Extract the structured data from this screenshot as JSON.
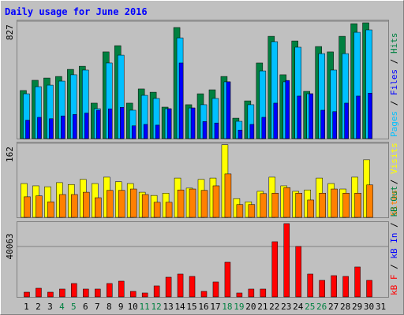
{
  "chart_data": [
    {
      "type": "bar",
      "title": "Daily usage for June 2016",
      "ylim": [
        0,
        827
      ],
      "yticks": [
        827
      ],
      "legend_separator": " / ",
      "series": [
        {
          "name": "Pages",
          "color": "#00c0ff",
          "values": [
            316,
            366,
            377,
            405,
            450,
            483,
            211,
            533,
            588,
            200,
            305,
            283,
            211,
            710,
            216,
            239,
            283,
            400,
            122,
            239,
            477,
            683,
            400,
            644,
            316,
            599,
            483,
            599,
            749,
            766,
            null
          ]
        },
        {
          "name": "Files",
          "color": "#0000ff",
          "values": [
            130,
            150,
            140,
            160,
            170,
            180,
            200,
            210,
            220,
            90,
            100,
            95,
            210,
            533,
            216,
            120,
            110,
            400,
            60,
            100,
            150,
            250,
            410,
            300,
            316,
            200,
            190,
            250,
            300,
            320,
            null
          ]
        },
        {
          "name": "Hits",
          "color": "#008040",
          "values": [
            339,
            411,
            427,
            438,
            488,
            510,
            250,
            611,
            655,
            250,
            350,
            327,
            222,
            783,
            239,
            316,
            344,
            438,
            144,
            266,
            533,
            721,
            450,
            688,
            333,
            649,
            611,
            721,
            810,
            816,
            null
          ]
        }
      ]
    },
    {
      "type": "bar",
      "ylim": [
        0,
        162
      ],
      "yticks": [
        162
      ],
      "legend_separator": " / ",
      "series": [
        {
          "name": "Sites",
          "color": "#ff8000",
          "values": [
            45,
            47,
            34,
            50,
            50,
            55,
            43,
            59,
            59,
            62,
            50,
            33,
            33,
            60,
            62,
            59,
            69,
            95,
            28,
            28,
            52,
            53,
            65,
            53,
            38,
            53,
            62,
            53,
            53,
            71,
            null
          ]
        },
        {
          "name": "Visits",
          "color": "#ffff00",
          "values": [
            74,
            69,
            67,
            76,
            72,
            83,
            74,
            88,
            78,
            74,
            55,
            48,
            53,
            86,
            64,
            83,
            86,
            159,
            41,
            34,
            57,
            88,
            69,
            57,
            60,
            86,
            74,
            62,
            88,
            126,
            null
          ]
        }
      ]
    },
    {
      "type": "bar",
      "ylim": [
        0,
        58800
      ],
      "yticks": [
        40063
      ],
      "legend_separator": " / ",
      "categories": [
        "1",
        "2",
        "3",
        "4",
        "5",
        "6",
        "7",
        "8",
        "9",
        "10",
        "11",
        "12",
        "13",
        "14",
        "15",
        "16",
        "17",
        "18",
        "19",
        "20",
        "21",
        "22",
        "23",
        "24",
        "25",
        "26",
        "27",
        "28",
        "29",
        "30",
        "31"
      ],
      "category_colors": [
        "#000000",
        "#000000",
        "#000000",
        "#008040",
        "#008040",
        "#000000",
        "#000000",
        "#000000",
        "#000000",
        "#000000",
        "#008040",
        "#008040",
        "#000000",
        "#000000",
        "#000000",
        "#000000",
        "#000000",
        "#008040",
        "#008040",
        "#000000",
        "#000000",
        "#000000",
        "#000000",
        "#000000",
        "#008040",
        "#008040",
        "#000000",
        "#000000",
        "#000000",
        "#000000",
        "#000000"
      ],
      "series": [
        {
          "name": "kB F",
          "color": "#ff0000",
          "values": [
            3756,
            6886,
            3756,
            6260,
            10642,
            6260,
            6260,
            10642,
            12520,
            4382,
            3130,
            8764,
            15650,
            18154,
            16276,
            4382,
            11894,
            27544,
            3130,
            6260,
            6260,
            43820,
            58218,
            40064,
            18154,
            13146,
            16902,
            16276,
            23788,
            13146,
            null
          ]
        },
        {
          "name": "kB In",
          "color": "#0000ff",
          "values": [
            null,
            null,
            null,
            null,
            null,
            null,
            null,
            null,
            null,
            null,
            null,
            null,
            null,
            null,
            null,
            null,
            null,
            null,
            null,
            null,
            null,
            null,
            null,
            null,
            null,
            null,
            null,
            null,
            null,
            null,
            null
          ]
        },
        {
          "name": "kB Out",
          "color": "#008040",
          "values": [
            null,
            null,
            null,
            null,
            null,
            null,
            null,
            null,
            null,
            null,
            null,
            null,
            null,
            null,
            null,
            null,
            null,
            null,
            null,
            null,
            null,
            null,
            null,
            null,
            null,
            null,
            null,
            null,
            null,
            null,
            null
          ]
        }
      ]
    }
  ]
}
